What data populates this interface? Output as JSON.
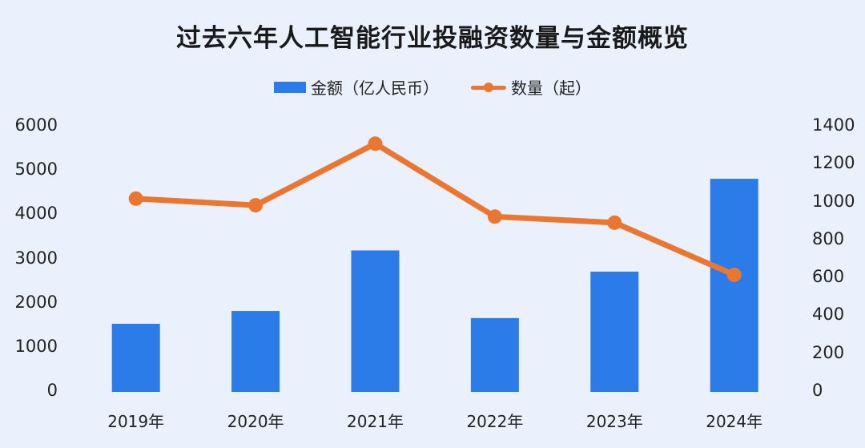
{
  "title": "过去六年人工智能行业投融资数量与金额概览",
  "legend": {
    "bar_label": "金额（亿人民币）",
    "line_label": "数量（起）"
  },
  "axes": {
    "left_ticks": [
      "6000",
      "5000",
      "4000",
      "3000",
      "2000",
      "1000",
      "0"
    ],
    "right_ticks": [
      "1400",
      "1200",
      "1000",
      "800",
      "600",
      "400",
      "200",
      "0"
    ],
    "x_ticks": [
      "2019年",
      "2020年",
      "2021年",
      "2022年",
      "2023年",
      "2024年"
    ]
  },
  "colors": {
    "background": "#eaf1fc",
    "bar": "#2b7be9",
    "line": "#eb7630"
  },
  "chart_data": {
    "type": "bar+line",
    "title": "过去六年人工智能行业投融资数量与金额概览",
    "categories": [
      "2019年",
      "2020年",
      "2021年",
      "2022年",
      "2023年",
      "2024年"
    ],
    "series": [
      {
        "name": "金额（亿人民币）",
        "type": "bar",
        "axis": "left",
        "values": [
          1540,
          1830,
          3200,
          1670,
          2720,
          4820
        ]
      },
      {
        "name": "数量（起）",
        "type": "line",
        "axis": "right",
        "values": [
          1020,
          985,
          1310,
          925,
          893,
          618
        ]
      }
    ],
    "xlabel": "",
    "ylabel_left": "金额（亿人民币）",
    "ylabel_right": "数量（起）",
    "ylim_left": [
      0,
      6000
    ],
    "ylim_right": [
      0,
      1400
    ],
    "grid": false,
    "legend_position": "top"
  }
}
